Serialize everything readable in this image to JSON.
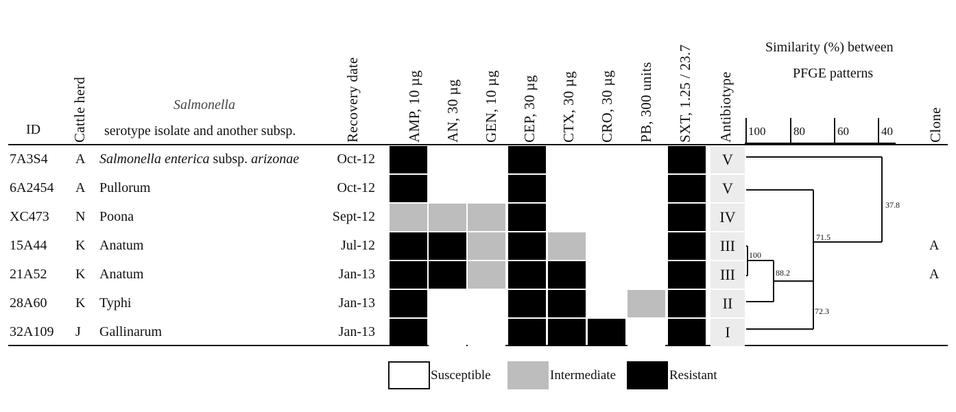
{
  "headers": {
    "id": "ID",
    "herd": "Cattle herd",
    "serotype_line1": "Salmonella",
    "serotype_line2": "serotype isolate and another subsp.",
    "date": "Recovery date",
    "antibiotype": "Antibiotype",
    "similarity_line1": "Similarity (%) between",
    "similarity_line2": "PFGE patterns",
    "clone": "Clone"
  },
  "antibiotics": [
    "AMP, 10 µg",
    "AN, 30 µg",
    "GEN, 10 µg",
    "CEP, 30 µg",
    "CTX, 30 µg",
    "CRO, 30 µg",
    "PB, 300 units",
    "SXT, 1.25 / 23.7"
  ],
  "scale": [
    "100",
    "80",
    "60",
    "40"
  ],
  "rows": [
    {
      "id": "7A3S4",
      "herd": "A",
      "serotype_italic": "Salmonella enterica",
      "serotype_mid": " subsp. ",
      "serotype_italic2": "arizonae",
      "serotype": "",
      "date": "Oct-12",
      "antibiotype": "V",
      "clone": "",
      "pattern": [
        2,
        0,
        0,
        2,
        0,
        0,
        0,
        2
      ]
    },
    {
      "id": "6A2454",
      "herd": "A",
      "serotype": "Pullorum",
      "date": "Oct-12",
      "antibiotype": "V",
      "clone": "",
      "pattern": [
        2,
        0,
        0,
        2,
        0,
        0,
        0,
        2
      ]
    },
    {
      "id": "XC473",
      "herd": "N",
      "serotype": "Poona",
      "date": "Sept-12",
      "antibiotype": "IV",
      "clone": "",
      "pattern": [
        1,
        1,
        1,
        2,
        0,
        0,
        0,
        2
      ]
    },
    {
      "id": "15A44",
      "herd": "K",
      "serotype": "Anatum",
      "date": "Jul-12",
      "antibiotype": "III",
      "clone": "A",
      "pattern": [
        2,
        2,
        1,
        2,
        1,
        0,
        0,
        2
      ]
    },
    {
      "id": "21A52",
      "herd": "K",
      "serotype": "Anatum",
      "date": "Jan-13",
      "antibiotype": "III",
      "clone": "A",
      "pattern": [
        2,
        2,
        1,
        2,
        2,
        0,
        0,
        2
      ]
    },
    {
      "id": "28A60",
      "herd": "K",
      "serotype": "Typhi",
      "date": "Jan-13",
      "antibiotype": "II",
      "clone": "",
      "pattern": [
        2,
        0,
        0,
        2,
        2,
        0,
        1,
        2
      ]
    },
    {
      "id": "32A109",
      "herd": "J",
      "serotype": "Gallinarum",
      "date": "Jan-13",
      "antibiotype": "I",
      "clone": "",
      "pattern": [
        2,
        0,
        0,
        2,
        2,
        2,
        0,
        2
      ]
    }
  ],
  "dendrogram_labels": {
    "n100": "100",
    "n88": "88.2",
    "n72": "72.3",
    "n71": "71.5",
    "n37": "37.8"
  },
  "legend": {
    "susceptible": "Susceptible",
    "intermediate": "Intermediate",
    "resistant": "Resistant"
  },
  "colors": {
    "resistant": "#000000",
    "intermediate": "#bdbdbd",
    "susceptible": "#ffffff",
    "antibiotype_bg": "#ececec"
  }
}
